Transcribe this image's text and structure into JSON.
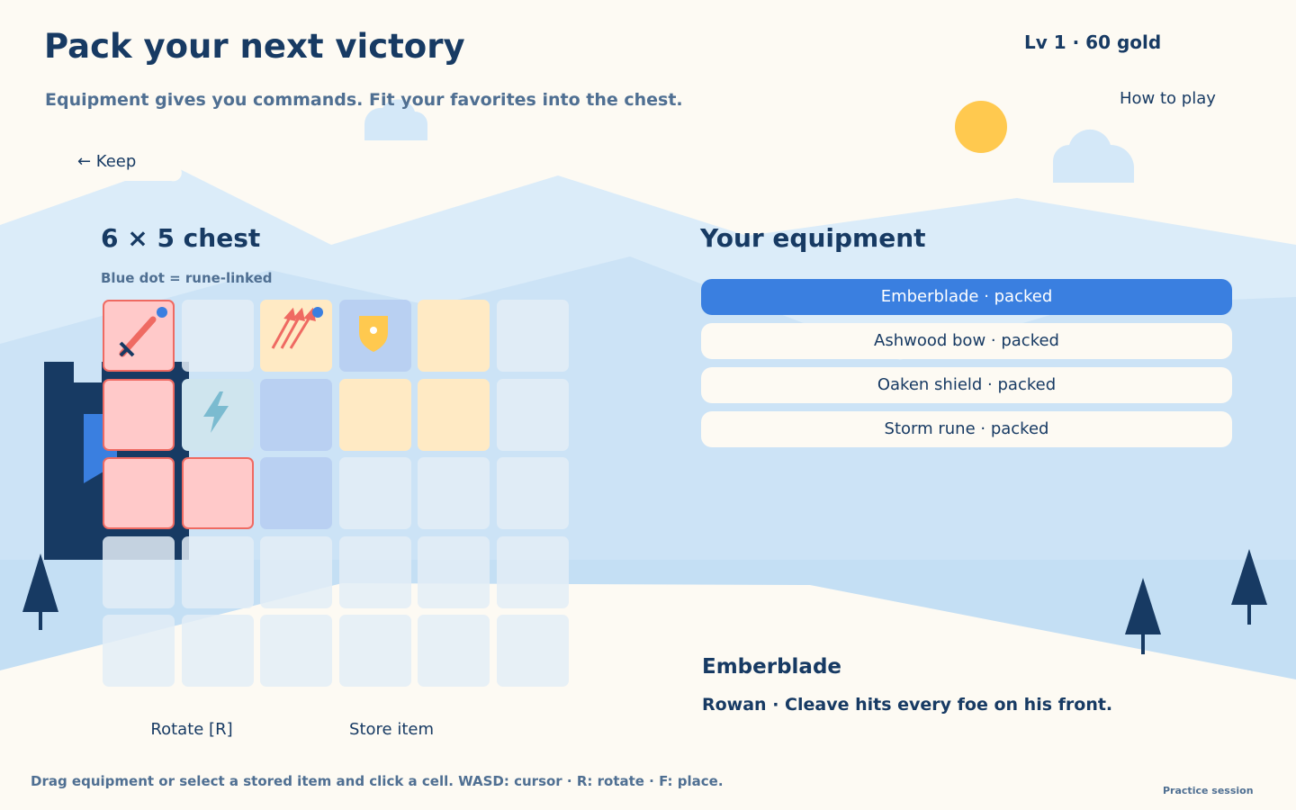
{
  "header": {
    "title": "Pack your next victory",
    "subtitle": "Equipment gives you commands. Fit your favorites into the chest.",
    "status": "Lv 1  ·  60 gold",
    "help": "How to play"
  },
  "nav": {
    "back": "← Keep"
  },
  "chest": {
    "title": "6 × 5 chest",
    "hint": "Blue dot = rune-linked"
  },
  "equipment": {
    "title": "Your equipment",
    "items": [
      "Emberblade · packed",
      "Ashwood bow · packed",
      "Oaken shield · packed",
      "Storm rune · packed"
    ]
  },
  "detail": {
    "name": "Emberblade",
    "text": "Rowan · Cleave hits every foe on his front."
  },
  "actions": [
    "Rotate [R]",
    "Store item"
  ],
  "footer": {
    "hint": "Drag equipment or select a stored item and click a cell. WASD: cursor · R: rotate · F: place.",
    "session": "Practice session"
  }
}
